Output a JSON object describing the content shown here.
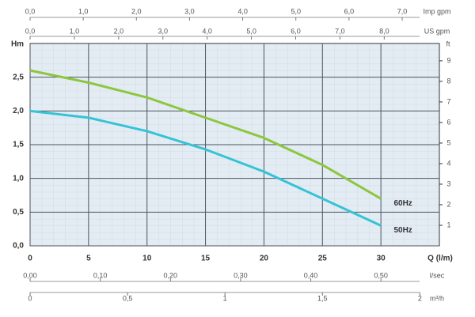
{
  "chart_data": {
    "type": "line",
    "ylabel": "Hm",
    "xlabel": "Q (l/m)",
    "y2label": "ft",
    "x": [
      0,
      5,
      10,
      15,
      20,
      25,
      30
    ],
    "series": [
      {
        "name": "60Hz",
        "color": "#8dc63f",
        "values": [
          2.6,
          2.42,
          2.2,
          1.9,
          1.6,
          1.2,
          0.7
        ]
      },
      {
        "name": "50Hz",
        "color": "#35c3d6",
        "values": [
          2.0,
          1.9,
          1.7,
          1.43,
          1.1,
          0.7,
          0.3
        ]
      }
    ],
    "xlim": [
      0,
      35
    ],
    "xticks": [
      0,
      5,
      10,
      15,
      20,
      25,
      30
    ],
    "ylim": [
      0,
      3
    ],
    "yticks": [
      {
        "value": 0,
        "label": "0,0"
      },
      {
        "value": 0.5,
        "label": "0,5"
      },
      {
        "value": 1,
        "label": "1,0"
      },
      {
        "value": 1.5,
        "label": "1,5"
      },
      {
        "value": 2,
        "label": "2,0"
      },
      {
        "value": 2.5,
        "label": "2,5"
      }
    ],
    "y2lim": [
      0,
      9.843
    ],
    "y2ticks": [
      1,
      2,
      3,
      4,
      5,
      6,
      7,
      8,
      9
    ],
    "grid": true,
    "top_axes": [
      {
        "label": "Imp gpm",
        "lim": [
          0,
          7.7
        ],
        "ticks": [
          {
            "value": 0,
            "label": "0,0"
          },
          {
            "value": 1,
            "label": "1,0"
          },
          {
            "value": 2,
            "label": "2,0"
          },
          {
            "value": 3,
            "label": "3,0"
          },
          {
            "value": 4,
            "label": "4,0"
          },
          {
            "value": 5,
            "label": "5,0"
          },
          {
            "value": 6,
            "label": "6,0"
          },
          {
            "value": 7,
            "label": "7,0"
          }
        ]
      },
      {
        "label": "US gpm",
        "lim": [
          0,
          9.246
        ],
        "ticks": [
          {
            "value": 0,
            "label": "0,0"
          },
          {
            "value": 1,
            "label": "1,0"
          },
          {
            "value": 2,
            "label": "2,0"
          },
          {
            "value": 3,
            "label": "3,0"
          },
          {
            "value": 4,
            "label": "4,0"
          },
          {
            "value": 5,
            "label": "5,0"
          },
          {
            "value": 6,
            "label": "6,0"
          },
          {
            "value": 7,
            "label": "7,0"
          },
          {
            "value": 8,
            "label": "8,0"
          }
        ]
      }
    ],
    "bottom_axes": [
      {
        "label": "l/sec",
        "lim": [
          0,
          0.5833
        ],
        "ticks": [
          {
            "value": 0,
            "label": "0,00"
          },
          {
            "value": 0.1,
            "label": "0,10"
          },
          {
            "value": 0.2,
            "label": "0,20"
          },
          {
            "value": 0.3,
            "label": "0,30"
          },
          {
            "value": 0.4,
            "label": "0,40"
          },
          {
            "value": 0.5,
            "label": "0,50"
          }
        ]
      },
      {
        "label": "m³/h",
        "lim": [
          0,
          2.1
        ],
        "ticks": [
          0,
          {
            "value": 0.5,
            "label": "0,5"
          },
          1,
          {
            "value": 1.5,
            "label": "1,5"
          },
          2
        ]
      }
    ]
  }
}
